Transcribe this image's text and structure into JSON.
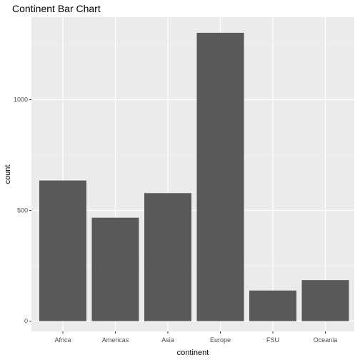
{
  "chart_data": {
    "type": "bar",
    "title": "Continent Bar Chart",
    "xlabel": "continent",
    "ylabel": "count",
    "categories": [
      "Africa",
      "Americas",
      "Asia",
      "Europe",
      "FSU",
      "Oceania"
    ],
    "values": [
      635,
      467,
      578,
      1302,
      138,
      185
    ],
    "ylim": [
      0,
      1380
    ],
    "yticks": [
      0,
      500,
      1000
    ],
    "grid": true,
    "colors": {
      "panel": "#ebebeb",
      "grid_major": "#ffffff",
      "bar": "#595959"
    }
  }
}
